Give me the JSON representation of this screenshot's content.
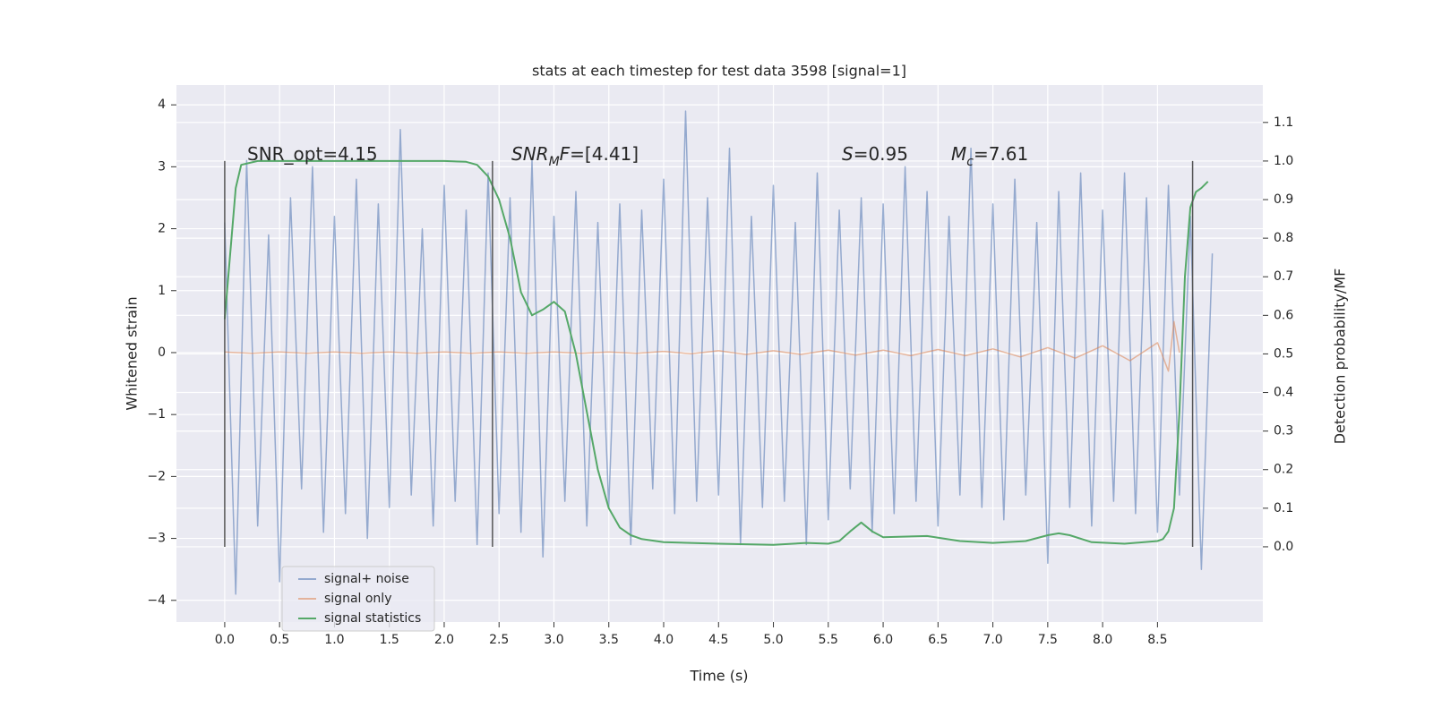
{
  "chart_data": {
    "type": "line",
    "title": "stats at each timestep for test data 3598 [signal=1]",
    "x_label": "Time (s)",
    "y_label": "Whitened strain",
    "y2_label": "Detection probability/MF",
    "xlim": [
      -0.44,
      9.46
    ],
    "ylim": [
      -4.35,
      4.32
    ],
    "y2lim": [
      -0.195,
      1.197
    ],
    "grid": true,
    "legend": "lower left",
    "xticks": [
      {
        "value": 0,
        "label": "0.0"
      },
      {
        "value": 0.5,
        "label": "0.5"
      },
      {
        "value": 1,
        "label": "1.0"
      },
      {
        "value": 1.5,
        "label": "1.5"
      },
      {
        "value": 2,
        "label": "2.0"
      },
      {
        "value": 2.5,
        "label": "2.5"
      },
      {
        "value": 3,
        "label": "3.0"
      },
      {
        "value": 3.5,
        "label": "3.5"
      },
      {
        "value": 4,
        "label": "4.0"
      },
      {
        "value": 4.5,
        "label": "4.5"
      },
      {
        "value": 5,
        "label": "5.0"
      },
      {
        "value": 5.5,
        "label": "5.5"
      },
      {
        "value": 6,
        "label": "6.0"
      },
      {
        "value": 6.5,
        "label": "6.5"
      },
      {
        "value": 7,
        "label": "7.0"
      },
      {
        "value": 7.5,
        "label": "7.5"
      },
      {
        "value": 8,
        "label": "8.0"
      },
      {
        "value": 8.5,
        "label": "8.5"
      }
    ],
    "yticks": [
      {
        "value": -4,
        "label": "−4"
      },
      {
        "value": -3,
        "label": "−3"
      },
      {
        "value": -2,
        "label": "−2"
      },
      {
        "value": -1,
        "label": "−1"
      },
      0,
      1,
      2,
      3,
      4
    ],
    "y2ticks": [
      {
        "value": 0,
        "label": "0.0"
      },
      {
        "value": 0.1,
        "label": "0.1"
      },
      {
        "value": 0.2,
        "label": "0.2"
      },
      {
        "value": 0.3,
        "label": "0.3"
      },
      {
        "value": 0.4,
        "label": "0.4"
      },
      {
        "value": 0.5,
        "label": "0.5"
      },
      {
        "value": 0.6,
        "label": "0.6"
      },
      {
        "value": 0.7,
        "label": "0.7"
      },
      {
        "value": 0.8,
        "label": "0.8"
      },
      {
        "value": 0.9,
        "label": "0.9"
      },
      {
        "value": 1,
        "label": "1.0"
      },
      {
        "value": 1.1,
        "label": "1.1"
      }
    ],
    "series": [
      {
        "name": "signal+ noise",
        "color": "#4c72b0",
        "alpha": 0.55,
        "x": [
          0,
          0.1,
          0.2,
          0.3,
          0.4,
          0.5,
          0.6,
          0.7,
          0.8,
          0.9,
          1,
          1.1,
          1.2,
          1.3,
          1.4,
          1.5,
          1.6,
          1.7,
          1.8,
          1.9,
          2,
          2.1,
          2.2,
          2.3,
          2.4,
          2.5,
          2.6,
          2.7,
          2.8,
          2.9,
          3,
          3.1,
          3.2,
          3.3,
          3.4,
          3.5,
          3.6,
          3.7,
          3.8,
          3.9,
          4,
          4.1,
          4.2,
          4.3,
          4.4,
          4.5,
          4.6,
          4.7,
          4.8,
          4.9,
          5,
          5.1,
          5.2,
          5.3,
          5.4,
          5.5,
          5.6,
          5.7,
          5.8,
          5.9,
          6,
          6.1,
          6.2,
          6.3,
          6.4,
          6.5,
          6.6,
          6.7,
          6.8,
          6.9,
          7,
          7.1,
          7.2,
          7.3,
          7.4,
          7.5,
          7.6,
          7.7,
          7.8,
          7.9,
          8,
          8.1,
          8.2,
          8.3,
          8.4,
          8.5,
          8.6,
          8.7,
          8.8,
          8.9,
          9
        ],
        "values": [
          2.1,
          -3.9,
          3.1,
          -2.8,
          1.9,
          -3.7,
          2.5,
          -2.2,
          3.0,
          -2.9,
          2.2,
          -2.6,
          2.8,
          -3.0,
          2.4,
          -2.5,
          3.6,
          -2.3,
          2.0,
          -2.8,
          2.7,
          -2.4,
          2.3,
          -3.1,
          2.9,
          -2.6,
          2.5,
          -2.9,
          3.1,
          -3.3,
          2.2,
          -2.4,
          2.6,
          -2.8,
          2.1,
          -2.5,
          2.4,
          -3.1,
          2.3,
          -2.2,
          2.8,
          -2.6,
          3.9,
          -2.4,
          2.5,
          -2.3,
          3.3,
          -3.1,
          2.2,
          -2.5,
          2.7,
          -2.4,
          2.1,
          -3.1,
          2.9,
          -2.7,
          2.3,
          -2.2,
          2.5,
          -2.9,
          2.4,
          -2.6,
          3.0,
          -2.4,
          2.6,
          -2.8,
          2.2,
          -2.3,
          3.3,
          -2.5,
          2.4,
          -2.7,
          2.8,
          -2.3,
          2.1,
          -3.4,
          2.6,
          -2.5,
          2.9,
          -2.8,
          2.3,
          -2.4,
          2.9,
          -2.6,
          2.5,
          -2.9,
          2.7,
          -2.3,
          2.2,
          -3.5,
          1.6
        ]
      },
      {
        "name": "signal only",
        "color": "#dd8452",
        "alpha": 0.55,
        "x": [
          0,
          0.25,
          0.5,
          0.75,
          1,
          1.25,
          1.5,
          1.75,
          2,
          2.25,
          2.5,
          2.75,
          3,
          3.25,
          3.5,
          3.75,
          4,
          4.25,
          4.5,
          4.75,
          5,
          5.25,
          5.5,
          5.75,
          6,
          6.25,
          6.5,
          6.75,
          7,
          7.25,
          7.5,
          7.75,
          8,
          8.25,
          8.5,
          8.6,
          8.65,
          8.7
        ],
        "values": [
          0.01,
          -0.01,
          0.01,
          -0.01,
          0.01,
          -0.01,
          0.01,
          -0.01,
          0.01,
          -0.01,
          0.01,
          -0.01,
          0.01,
          -0.01,
          0.01,
          -0.01,
          0.02,
          -0.02,
          0.03,
          -0.03,
          0.03,
          -0.03,
          0.04,
          -0.04,
          0.04,
          -0.05,
          0.05,
          -0.05,
          0.06,
          -0.07,
          0.08,
          -0.09,
          0.11,
          -0.13,
          0.16,
          -0.3,
          0.5,
          0.0
        ]
      },
      {
        "name": "signal statistics",
        "color": "#55a868",
        "alpha": 1,
        "axis": "y2",
        "x": [
          0,
          0.1,
          0.15,
          0.3,
          2,
          2.2,
          2.3,
          2.4,
          2.5,
          2.6,
          2.7,
          2.8,
          2.9,
          3,
          3.1,
          3.2,
          3.3,
          3.4,
          3.5,
          3.6,
          3.7,
          3.8,
          4,
          4.5,
          5,
          5.3,
          5.5,
          5.6,
          5.7,
          5.8,
          5.9,
          6,
          6.4,
          6.7,
          7,
          7.3,
          7.5,
          7.6,
          7.7,
          7.9,
          8.2,
          8.5,
          8.55,
          8.6,
          8.65,
          8.7,
          8.75,
          8.8,
          8.85,
          8.9,
          8.96
        ],
        "values": [
          0.59,
          0.93,
          0.99,
          1.0,
          1.0,
          0.998,
          0.99,
          0.96,
          0.9,
          0.8,
          0.66,
          0.6,
          0.615,
          0.635,
          0.61,
          0.5,
          0.35,
          0.2,
          0.1,
          0.05,
          0.03,
          0.02,
          0.012,
          0.008,
          0.005,
          0.01,
          0.008,
          0.015,
          0.04,
          0.063,
          0.04,
          0.025,
          0.028,
          0.015,
          0.01,
          0.015,
          0.03,
          0.035,
          0.03,
          0.012,
          0.008,
          0.015,
          0.02,
          0.04,
          0.1,
          0.35,
          0.7,
          0.88,
          0.92,
          0.93,
          0.947
        ]
      }
    ],
    "vlines": {
      "x": [
        0.0,
        2.44,
        8.82
      ],
      "y2": [
        0,
        1
      ],
      "color": "#555555"
    },
    "annotations": [
      {
        "parts": [
          {
            "text": "SNR_opt=4.15"
          }
        ]
      },
      {
        "parts": [
          {
            "text": "SNR",
            "italic": true
          },
          {
            "text": "M",
            "italic": true,
            "sub": true
          },
          {
            "text": "F",
            "italic": true
          },
          {
            "text": "=[4.41]"
          }
        ]
      },
      {
        "parts": [
          {
            "text": "S",
            "italic": true
          },
          {
            "text": "=0.95"
          }
        ]
      },
      {
        "parts": [
          {
            "text": "M",
            "italic": true
          },
          {
            "text": "c",
            "italic": true,
            "sub": true
          },
          {
            "text": "=7.61"
          }
        ]
      }
    ]
  }
}
